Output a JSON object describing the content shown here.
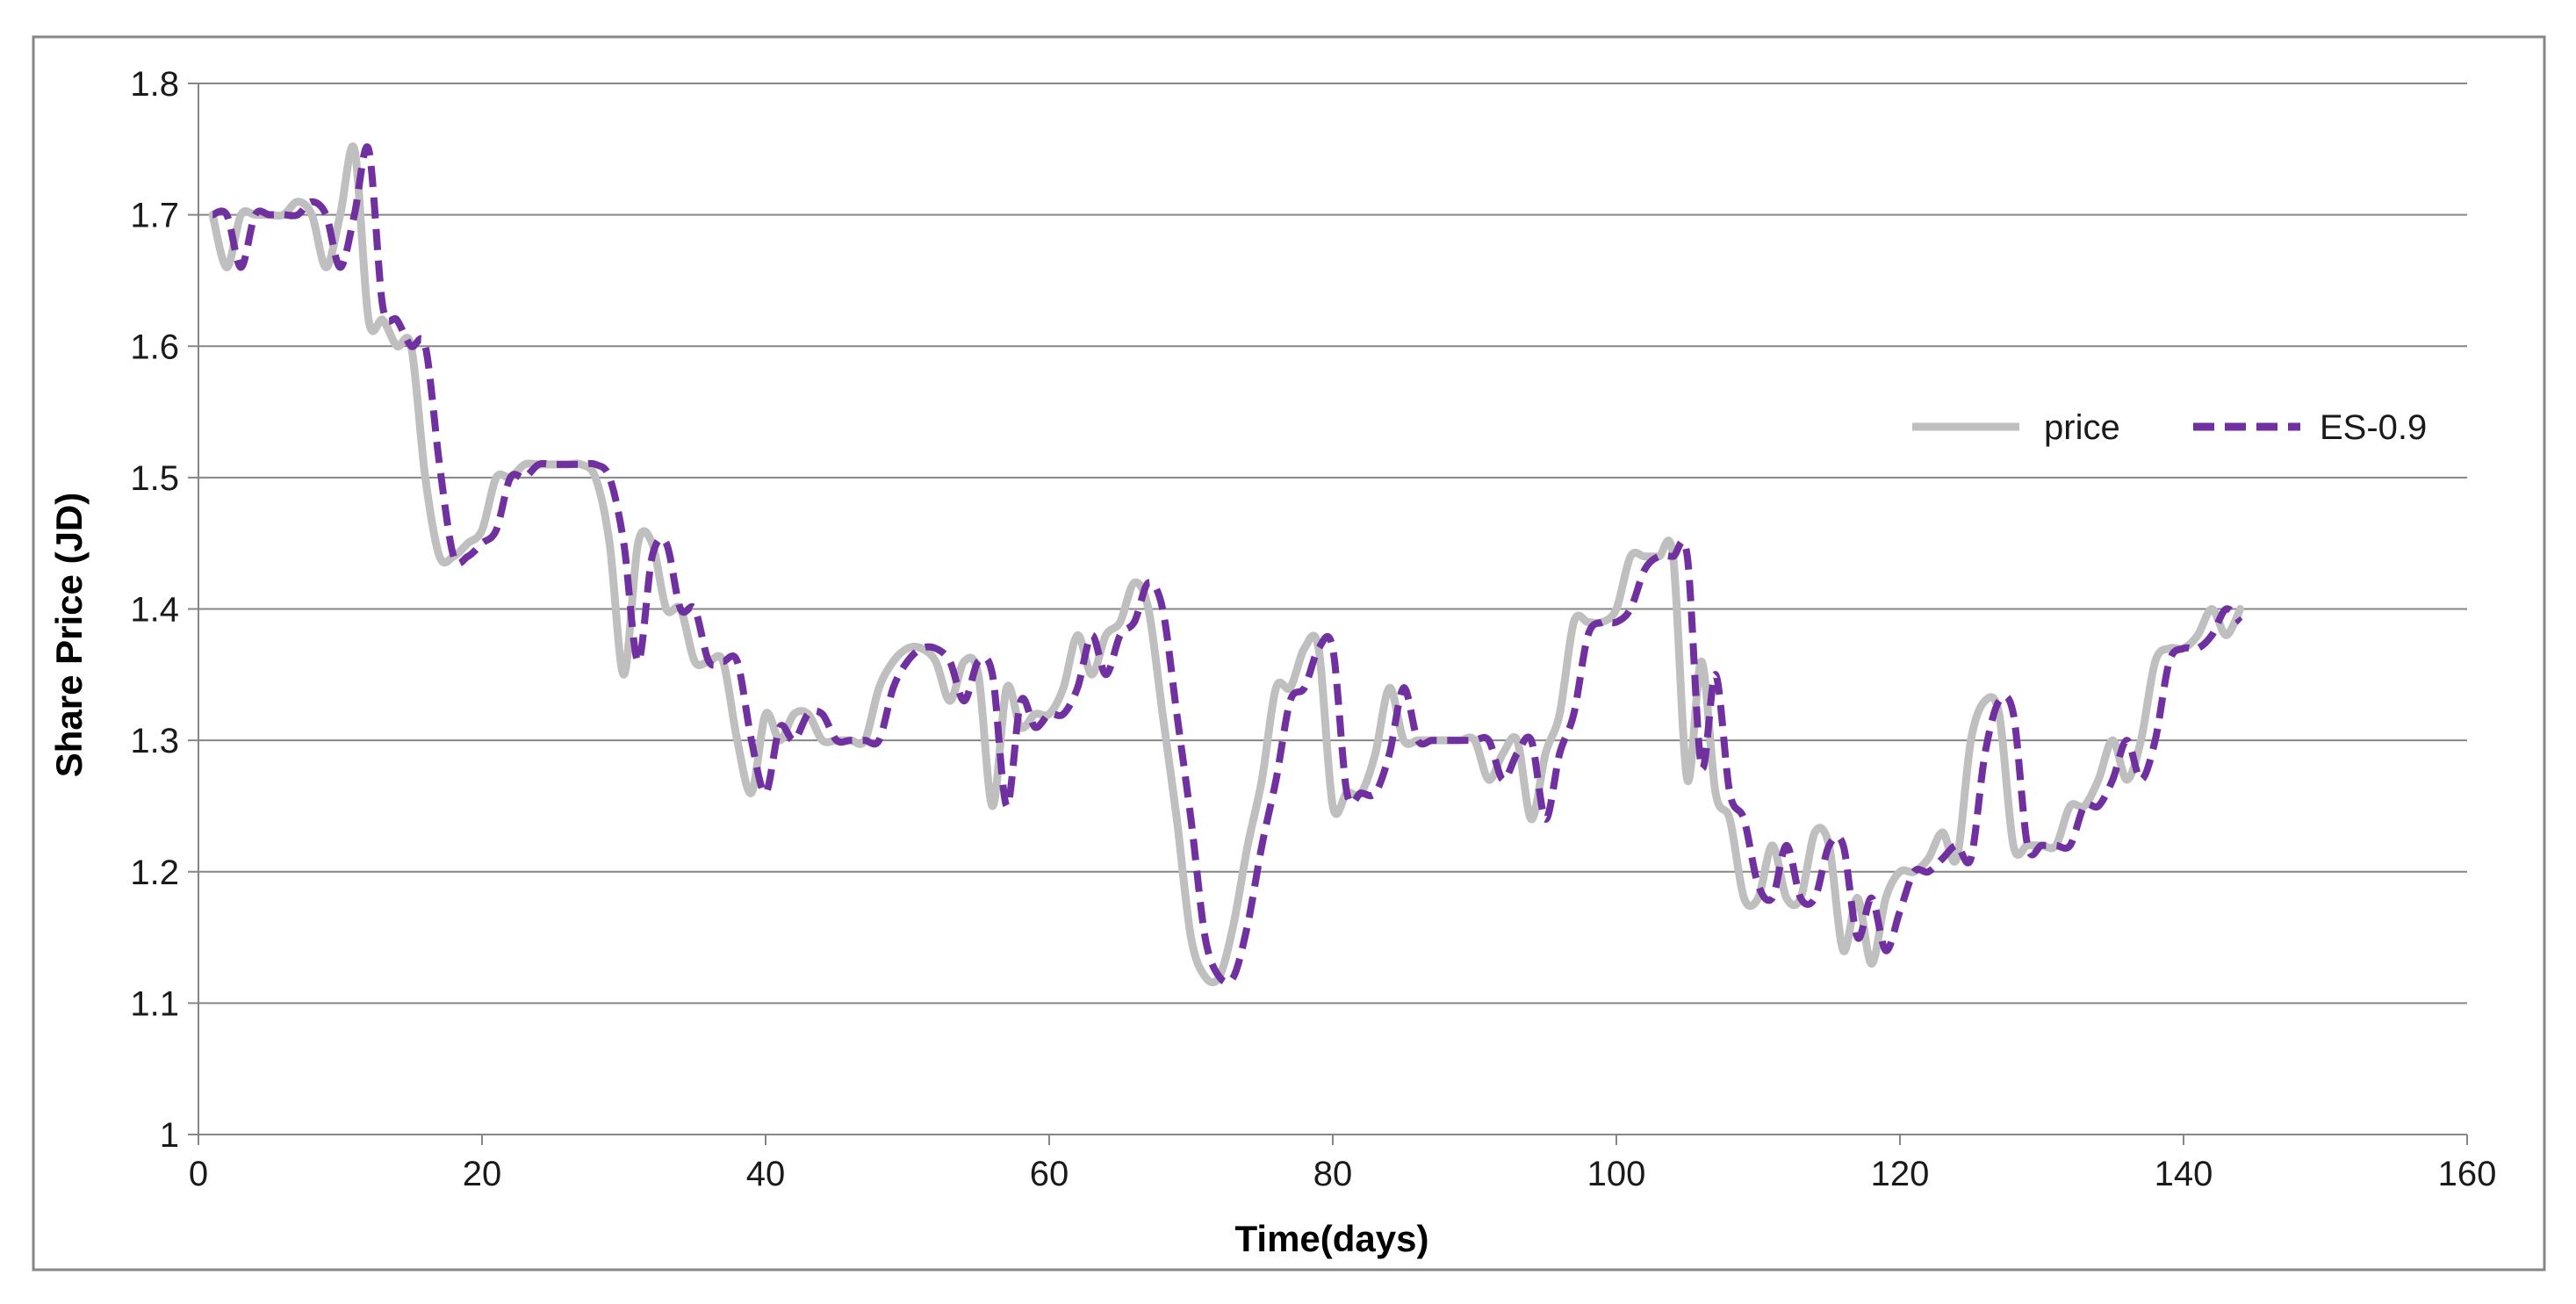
{
  "chart_data": {
    "type": "line",
    "title": "",
    "xlabel": "Time(days)",
    "ylabel": "Share Price (JD)",
    "xlim": [
      0,
      160
    ],
    "ylim": [
      1,
      1.8
    ],
    "x_ticks": [
      "0",
      "20",
      "40",
      "60",
      "80",
      "100",
      "120",
      "140",
      "160"
    ],
    "y_ticks": [
      "1",
      "1.1",
      "1.2",
      "1.3",
      "1.4",
      "1.5",
      "1.6",
      "1.7",
      "1.8"
    ],
    "grid": "horizontal",
    "legend_position": "right",
    "series": [
      {
        "name": "price",
        "color": "#bfbfbf",
        "style": "solid",
        "x": [
          1,
          2,
          3,
          4,
          5,
          6,
          7,
          8,
          9,
          10,
          11,
          12,
          13,
          14,
          15,
          16,
          17,
          18,
          19,
          20,
          21,
          22,
          23,
          24,
          25,
          26,
          27,
          28,
          29,
          30,
          31,
          32,
          33,
          34,
          35,
          36,
          37,
          38,
          39,
          40,
          41,
          42,
          43,
          44,
          45,
          46,
          47,
          48,
          49,
          50,
          51,
          52,
          53,
          54,
          55,
          56,
          57,
          58,
          59,
          60,
          61,
          62,
          63,
          64,
          65,
          66,
          67,
          68,
          69,
          70,
          71,
          72,
          73,
          74,
          75,
          76,
          77,
          78,
          79,
          80,
          81,
          82,
          83,
          84,
          85,
          86,
          87,
          88,
          89,
          90,
          91,
          92,
          93,
          94,
          95,
          96,
          97,
          98,
          99,
          100,
          101,
          102,
          103,
          104,
          105,
          106,
          107,
          108,
          109,
          110,
          111,
          112,
          113,
          114,
          115,
          116,
          117,
          118,
          119,
          120,
          121,
          122,
          123,
          124,
          125,
          126,
          127,
          128,
          129,
          130,
          131,
          132,
          133,
          134,
          135,
          136,
          137,
          138,
          139,
          140,
          141,
          142,
          143,
          144
        ],
        "values": [
          1.7,
          1.66,
          1.7,
          1.7,
          1.7,
          1.7,
          1.71,
          1.7,
          1.66,
          1.7,
          1.75,
          1.62,
          1.62,
          1.6,
          1.6,
          1.5,
          1.44,
          1.44,
          1.45,
          1.46,
          1.5,
          1.5,
          1.51,
          1.51,
          1.51,
          1.51,
          1.51,
          1.5,
          1.45,
          1.35,
          1.45,
          1.45,
          1.4,
          1.4,
          1.36,
          1.36,
          1.36,
          1.3,
          1.26,
          1.32,
          1.3,
          1.32,
          1.32,
          1.3,
          1.3,
          1.3,
          1.3,
          1.34,
          1.36,
          1.37,
          1.37,
          1.36,
          1.33,
          1.36,
          1.35,
          1.25,
          1.34,
          1.31,
          1.32,
          1.32,
          1.34,
          1.38,
          1.35,
          1.38,
          1.39,
          1.42,
          1.4,
          1.32,
          1.24,
          1.15,
          1.12,
          1.12,
          1.16,
          1.22,
          1.27,
          1.34,
          1.34,
          1.37,
          1.37,
          1.25,
          1.26,
          1.26,
          1.29,
          1.34,
          1.3,
          1.3,
          1.3,
          1.3,
          1.3,
          1.3,
          1.27,
          1.29,
          1.3,
          1.24,
          1.29,
          1.32,
          1.39,
          1.39,
          1.39,
          1.4,
          1.44,
          1.44,
          1.44,
          1.44,
          1.27,
          1.36,
          1.26,
          1.24,
          1.18,
          1.18,
          1.22,
          1.18,
          1.18,
          1.23,
          1.22,
          1.14,
          1.18,
          1.13,
          1.18,
          1.2,
          1.2,
          1.21,
          1.23,
          1.21,
          1.3,
          1.33,
          1.32,
          1.22,
          1.22,
          1.22,
          1.22,
          1.25,
          1.25,
          1.27,
          1.3,
          1.27,
          1.3,
          1.36,
          1.37,
          1.37,
          1.38,
          1.4,
          1.38,
          1.4
        ]
      },
      {
        "name": "ES-0.9",
        "color": "#7030a0",
        "style": "dashed",
        "x": [
          1,
          2,
          3,
          4,
          5,
          6,
          7,
          8,
          9,
          10,
          11,
          12,
          13,
          14,
          15,
          16,
          17,
          18,
          19,
          20,
          21,
          22,
          23,
          24,
          25,
          26,
          27,
          28,
          29,
          30,
          31,
          32,
          33,
          34,
          35,
          36,
          37,
          38,
          39,
          40,
          41,
          42,
          43,
          44,
          45,
          46,
          47,
          48,
          49,
          50,
          51,
          52,
          53,
          54,
          55,
          56,
          57,
          58,
          59,
          60,
          61,
          62,
          63,
          64,
          65,
          66,
          67,
          68,
          69,
          70,
          71,
          72,
          73,
          74,
          75,
          76,
          77,
          78,
          79,
          80,
          81,
          82,
          83,
          84,
          85,
          86,
          87,
          88,
          89,
          90,
          91,
          92,
          93,
          94,
          95,
          96,
          97,
          98,
          99,
          100,
          101,
          102,
          103,
          104,
          105,
          106,
          107,
          108,
          109,
          110,
          111,
          112,
          113,
          114,
          115,
          116,
          117,
          118,
          119,
          120,
          121,
          122,
          123,
          124,
          125,
          126,
          127,
          128,
          129,
          130,
          131,
          132,
          133,
          134,
          135,
          136,
          137,
          138,
          139,
          140,
          141,
          142,
          143,
          144
        ],
        "values": [
          1.7,
          1.7,
          1.66,
          1.7,
          1.7,
          1.7,
          1.7,
          1.71,
          1.7,
          1.66,
          1.7,
          1.75,
          1.63,
          1.62,
          1.6,
          1.6,
          1.51,
          1.44,
          1.44,
          1.45,
          1.46,
          1.5,
          1.5,
          1.51,
          1.51,
          1.51,
          1.51,
          1.51,
          1.5,
          1.45,
          1.36,
          1.44,
          1.45,
          1.4,
          1.4,
          1.36,
          1.36,
          1.36,
          1.3,
          1.26,
          1.31,
          1.3,
          1.32,
          1.32,
          1.3,
          1.3,
          1.3,
          1.3,
          1.34,
          1.36,
          1.37,
          1.37,
          1.36,
          1.33,
          1.36,
          1.35,
          1.25,
          1.33,
          1.31,
          1.32,
          1.32,
          1.34,
          1.38,
          1.35,
          1.38,
          1.39,
          1.42,
          1.4,
          1.32,
          1.24,
          1.15,
          1.12,
          1.12,
          1.16,
          1.22,
          1.27,
          1.33,
          1.34,
          1.37,
          1.37,
          1.26,
          1.26,
          1.26,
          1.29,
          1.34,
          1.3,
          1.3,
          1.3,
          1.3,
          1.3,
          1.3,
          1.27,
          1.29,
          1.3,
          1.24,
          1.29,
          1.32,
          1.38,
          1.39,
          1.39,
          1.4,
          1.43,
          1.44,
          1.44,
          1.44,
          1.28,
          1.35,
          1.26,
          1.24,
          1.19,
          1.18,
          1.22,
          1.18,
          1.18,
          1.22,
          1.22,
          1.15,
          1.18,
          1.14,
          1.17,
          1.2,
          1.2,
          1.21,
          1.22,
          1.21,
          1.29,
          1.33,
          1.32,
          1.22,
          1.22,
          1.22,
          1.22,
          1.25,
          1.25,
          1.27,
          1.3,
          1.27,
          1.3,
          1.36,
          1.37,
          1.37,
          1.38,
          1.4,
          1.39
        ]
      }
    ]
  }
}
